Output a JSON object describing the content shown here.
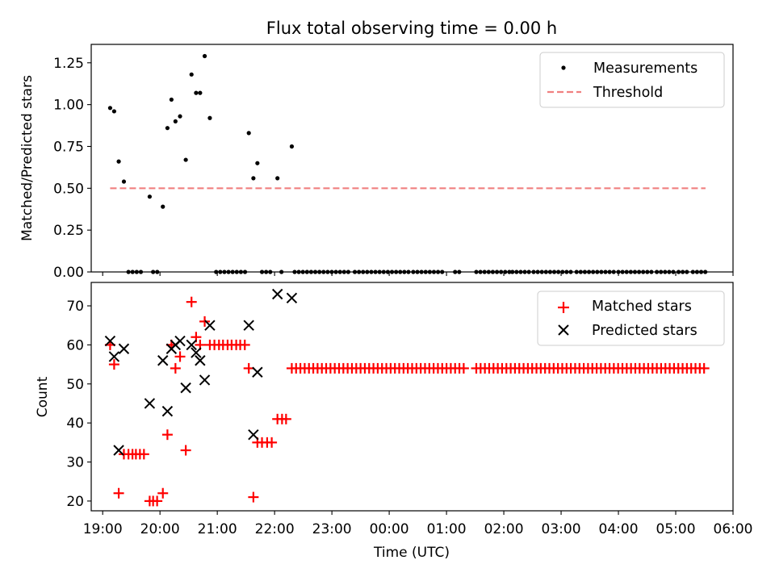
{
  "figure": {
    "title": "Flux total observing time = 0.00 h",
    "xlabel": "Time (UTC)",
    "x_tick_labels": [
      "19:00",
      "20:00",
      "21:00",
      "22:00",
      "23:00",
      "00:00",
      "01:00",
      "02:00",
      "03:00",
      "04:00",
      "05:00",
      "06:00"
    ]
  },
  "chart_data": [
    {
      "type": "scatter",
      "panel": "top",
      "ylabel": "Matched/Predicted stars",
      "xlim": [
        18.8,
        30.0
      ],
      "ylim": [
        0.0,
        1.36
      ],
      "y_tick_labels": [
        "0.00",
        "0.25",
        "0.50",
        "0.75",
        "1.00",
        "1.25"
      ],
      "y_ticks": [
        0.0,
        0.25,
        0.5,
        0.75,
        1.0,
        1.25
      ],
      "legend": {
        "position": "upper right",
        "entries": [
          "Measurements",
          "Threshold"
        ]
      },
      "series": [
        {
          "name": "Measurements",
          "marker": "dot",
          "color": "#000000",
          "x": [
            19.13,
            19.2,
            19.28,
            19.37,
            19.82,
            20.05,
            20.13,
            20.2,
            20.27,
            20.35,
            20.45,
            20.55,
            20.63,
            20.7,
            20.78,
            20.87,
            21.55,
            21.63,
            21.7,
            22.05,
            22.3
          ],
          "y": [
            0.98,
            0.96,
            0.66,
            0.54,
            0.45,
            0.39,
            0.86,
            1.03,
            0.9,
            0.93,
            0.67,
            1.18,
            1.07,
            1.07,
            1.29,
            0.92,
            0.83,
            0.56,
            0.65,
            0.56,
            0.75
          ],
          "zero_ranges": [
            [
              19.45,
              19.72
            ],
            [
              19.88,
              19.98
            ],
            [
              20.98,
              21.55
            ],
            [
              21.78,
              21.98
            ],
            [
              22.12,
              22.18
            ],
            [
              22.35,
              23.35
            ],
            [
              23.4,
              24.35
            ],
            [
              24.42,
              24.95
            ],
            [
              25.15,
              25.25
            ],
            [
              25.52,
              26.1
            ],
            [
              26.15,
              26.45
            ],
            [
              26.52,
              27.2
            ],
            [
              27.27,
              27.95
            ],
            [
              28.0,
              28.6
            ],
            [
              28.67,
              29.0
            ],
            [
              29.05,
              29.25
            ],
            [
              29.3,
              29.52
            ]
          ]
        },
        {
          "name": "Threshold",
          "style": "dashed",
          "color": "#f08080",
          "x": [
            19.13,
            29.52
          ],
          "y": [
            0.5,
            0.5
          ]
        }
      ]
    },
    {
      "type": "scatter",
      "panel": "bottom",
      "ylabel": "Count",
      "xlim": [
        18.8,
        30.0
      ],
      "ylim": [
        17.5,
        76.0
      ],
      "y_tick_labels": [
        "20",
        "30",
        "40",
        "50",
        "60",
        "70"
      ],
      "y_ticks": [
        20,
        30,
        40,
        50,
        60,
        70
      ],
      "legend": {
        "position": "upper right",
        "entries": [
          "Matched stars",
          "Predicted stars"
        ]
      },
      "series": [
        {
          "name": "Matched stars",
          "marker": "plus",
          "color": "#ff0000",
          "x": [
            19.13,
            19.2,
            19.28,
            19.37,
            19.45,
            19.52,
            19.58,
            19.65,
            19.72,
            19.82,
            19.88,
            19.95,
            20.05,
            20.13,
            20.2,
            20.27,
            20.35,
            20.45,
            20.55,
            20.63,
            20.7,
            20.78,
            20.87,
            20.95,
            21.03,
            21.1,
            21.18,
            21.25,
            21.33,
            21.4,
            21.48,
            21.55,
            21.63,
            21.7,
            21.78,
            21.87,
            21.95,
            22.05,
            22.13,
            22.2
          ],
          "y": [
            60,
            55,
            22,
            32,
            32,
            32,
            32,
            32,
            32,
            20,
            20,
            20,
            22,
            37,
            60,
            54,
            57,
            33,
            71,
            62,
            60,
            66,
            60,
            60,
            60,
            60,
            60,
            60,
            60,
            60,
            60,
            54,
            21,
            35,
            35,
            35,
            35,
            41,
            41,
            41
          ],
          "constant_runs": [
            {
              "value": 54,
              "range": [
                22.3,
                25.3
              ],
              "step": 0.075
            },
            {
              "value": 54,
              "range": [
                25.52,
                29.52
              ],
              "step": 0.075
            }
          ]
        },
        {
          "name": "Predicted stars",
          "marker": "x",
          "color": "#000000",
          "x": [
            19.13,
            19.2,
            19.28,
            19.37,
            19.82,
            20.05,
            20.13,
            20.2,
            20.27,
            20.35,
            20.45,
            20.55,
            20.63,
            20.7,
            20.78,
            20.87,
            21.55,
            21.63,
            21.7,
            22.05,
            22.3
          ],
          "y": [
            61,
            57,
            33,
            59,
            45,
            56,
            43,
            59,
            60,
            61,
            49,
            60,
            58,
            56,
            51,
            65,
            65,
            37,
            53,
            73,
            72
          ]
        }
      ]
    }
  ]
}
